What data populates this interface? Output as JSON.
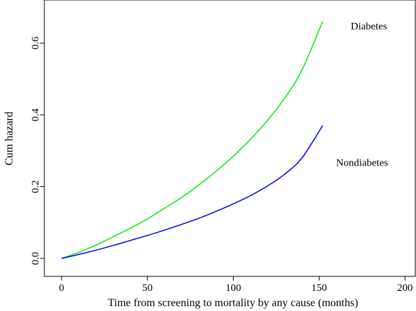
{
  "chart_data": {
    "type": "line",
    "title": "",
    "xlabel": "Time from screening to mortality by any cause (months)",
    "ylabel": "Cum hazard",
    "xlim": [
      -10,
      206
    ],
    "ylim": [
      -0.05,
      0.72
    ],
    "xticks": [
      0,
      50,
      100,
      150,
      200
    ],
    "yticks": [
      0.0,
      0.2,
      0.4,
      0.6
    ],
    "xtick_labels": [
      "0",
      "50",
      "100",
      "150",
      "200"
    ],
    "ytick_labels": [
      "0.0",
      "0.2",
      "0.4",
      "0.6"
    ],
    "grid": false,
    "series": [
      {
        "name": "Diabetes",
        "color": "#00ee00",
        "x": [
          0,
          10,
          20,
          30,
          40,
          50,
          60,
          70,
          80,
          90,
          100,
          110,
          120,
          130,
          140,
          152
        ],
        "y": [
          0.0,
          0.017,
          0.037,
          0.06,
          0.084,
          0.11,
          0.14,
          0.17,
          0.205,
          0.243,
          0.285,
          0.332,
          0.385,
          0.447,
          0.525,
          0.66
        ]
      },
      {
        "name": "Nondiabetes",
        "color": "#0000ee",
        "x": [
          0,
          10,
          20,
          30,
          40,
          50,
          60,
          70,
          80,
          90,
          100,
          110,
          120,
          130,
          140,
          152
        ],
        "y": [
          0.0,
          0.011,
          0.023,
          0.036,
          0.05,
          0.064,
          0.079,
          0.095,
          0.112,
          0.131,
          0.152,
          0.175,
          0.202,
          0.235,
          0.28,
          0.37
        ]
      }
    ],
    "series_label_positions": {
      "Diabetes": [
        179,
        0.638
      ],
      "Nondiabetes": [
        175,
        0.258
      ]
    }
  }
}
